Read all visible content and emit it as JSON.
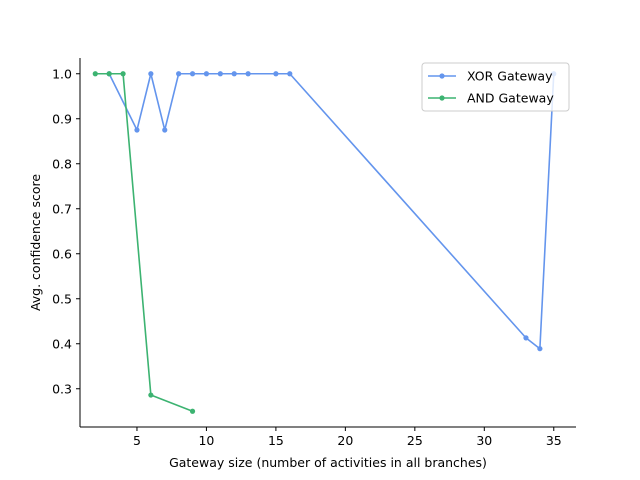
{
  "chart_data": {
    "type": "line",
    "xlabel": "Gateway size (number of activities in all branches)",
    "ylabel": "Avg. confidence score",
    "xlim": [
      0.9,
      36.6
    ],
    "ylim": [
      0.215,
      1.035
    ],
    "xticks": [
      5,
      10,
      15,
      20,
      25,
      30,
      35
    ],
    "yticks": [
      0.3,
      0.4,
      0.5,
      0.6,
      0.7,
      0.8,
      0.9,
      1.0
    ],
    "xtick_labels": [
      "5",
      "10",
      "15",
      "20",
      "25",
      "30",
      "35"
    ],
    "ytick_labels": [
      "0.3",
      "0.4",
      "0.5",
      "0.6",
      "0.7",
      "0.8",
      "0.9",
      "1.0"
    ],
    "grid": false,
    "legend_position": "upper right",
    "series": [
      {
        "name": "XOR Gateway",
        "color": "#6495ED",
        "x": [
          3,
          5,
          6,
          7,
          8,
          9,
          10,
          11,
          12,
          13,
          15,
          16,
          33,
          34,
          35
        ],
        "y": [
          1.0,
          0.875,
          1.0,
          0.875,
          1.0,
          1.0,
          1.0,
          1.0,
          1.0,
          1.0,
          1.0,
          1.0,
          0.413,
          0.389,
          1.0
        ]
      },
      {
        "name": "AND Gateway",
        "color": "#3CB371",
        "x": [
          2,
          3,
          4,
          6,
          9
        ],
        "y": [
          1.0,
          1.0,
          1.0,
          0.286,
          0.25
        ]
      }
    ]
  }
}
